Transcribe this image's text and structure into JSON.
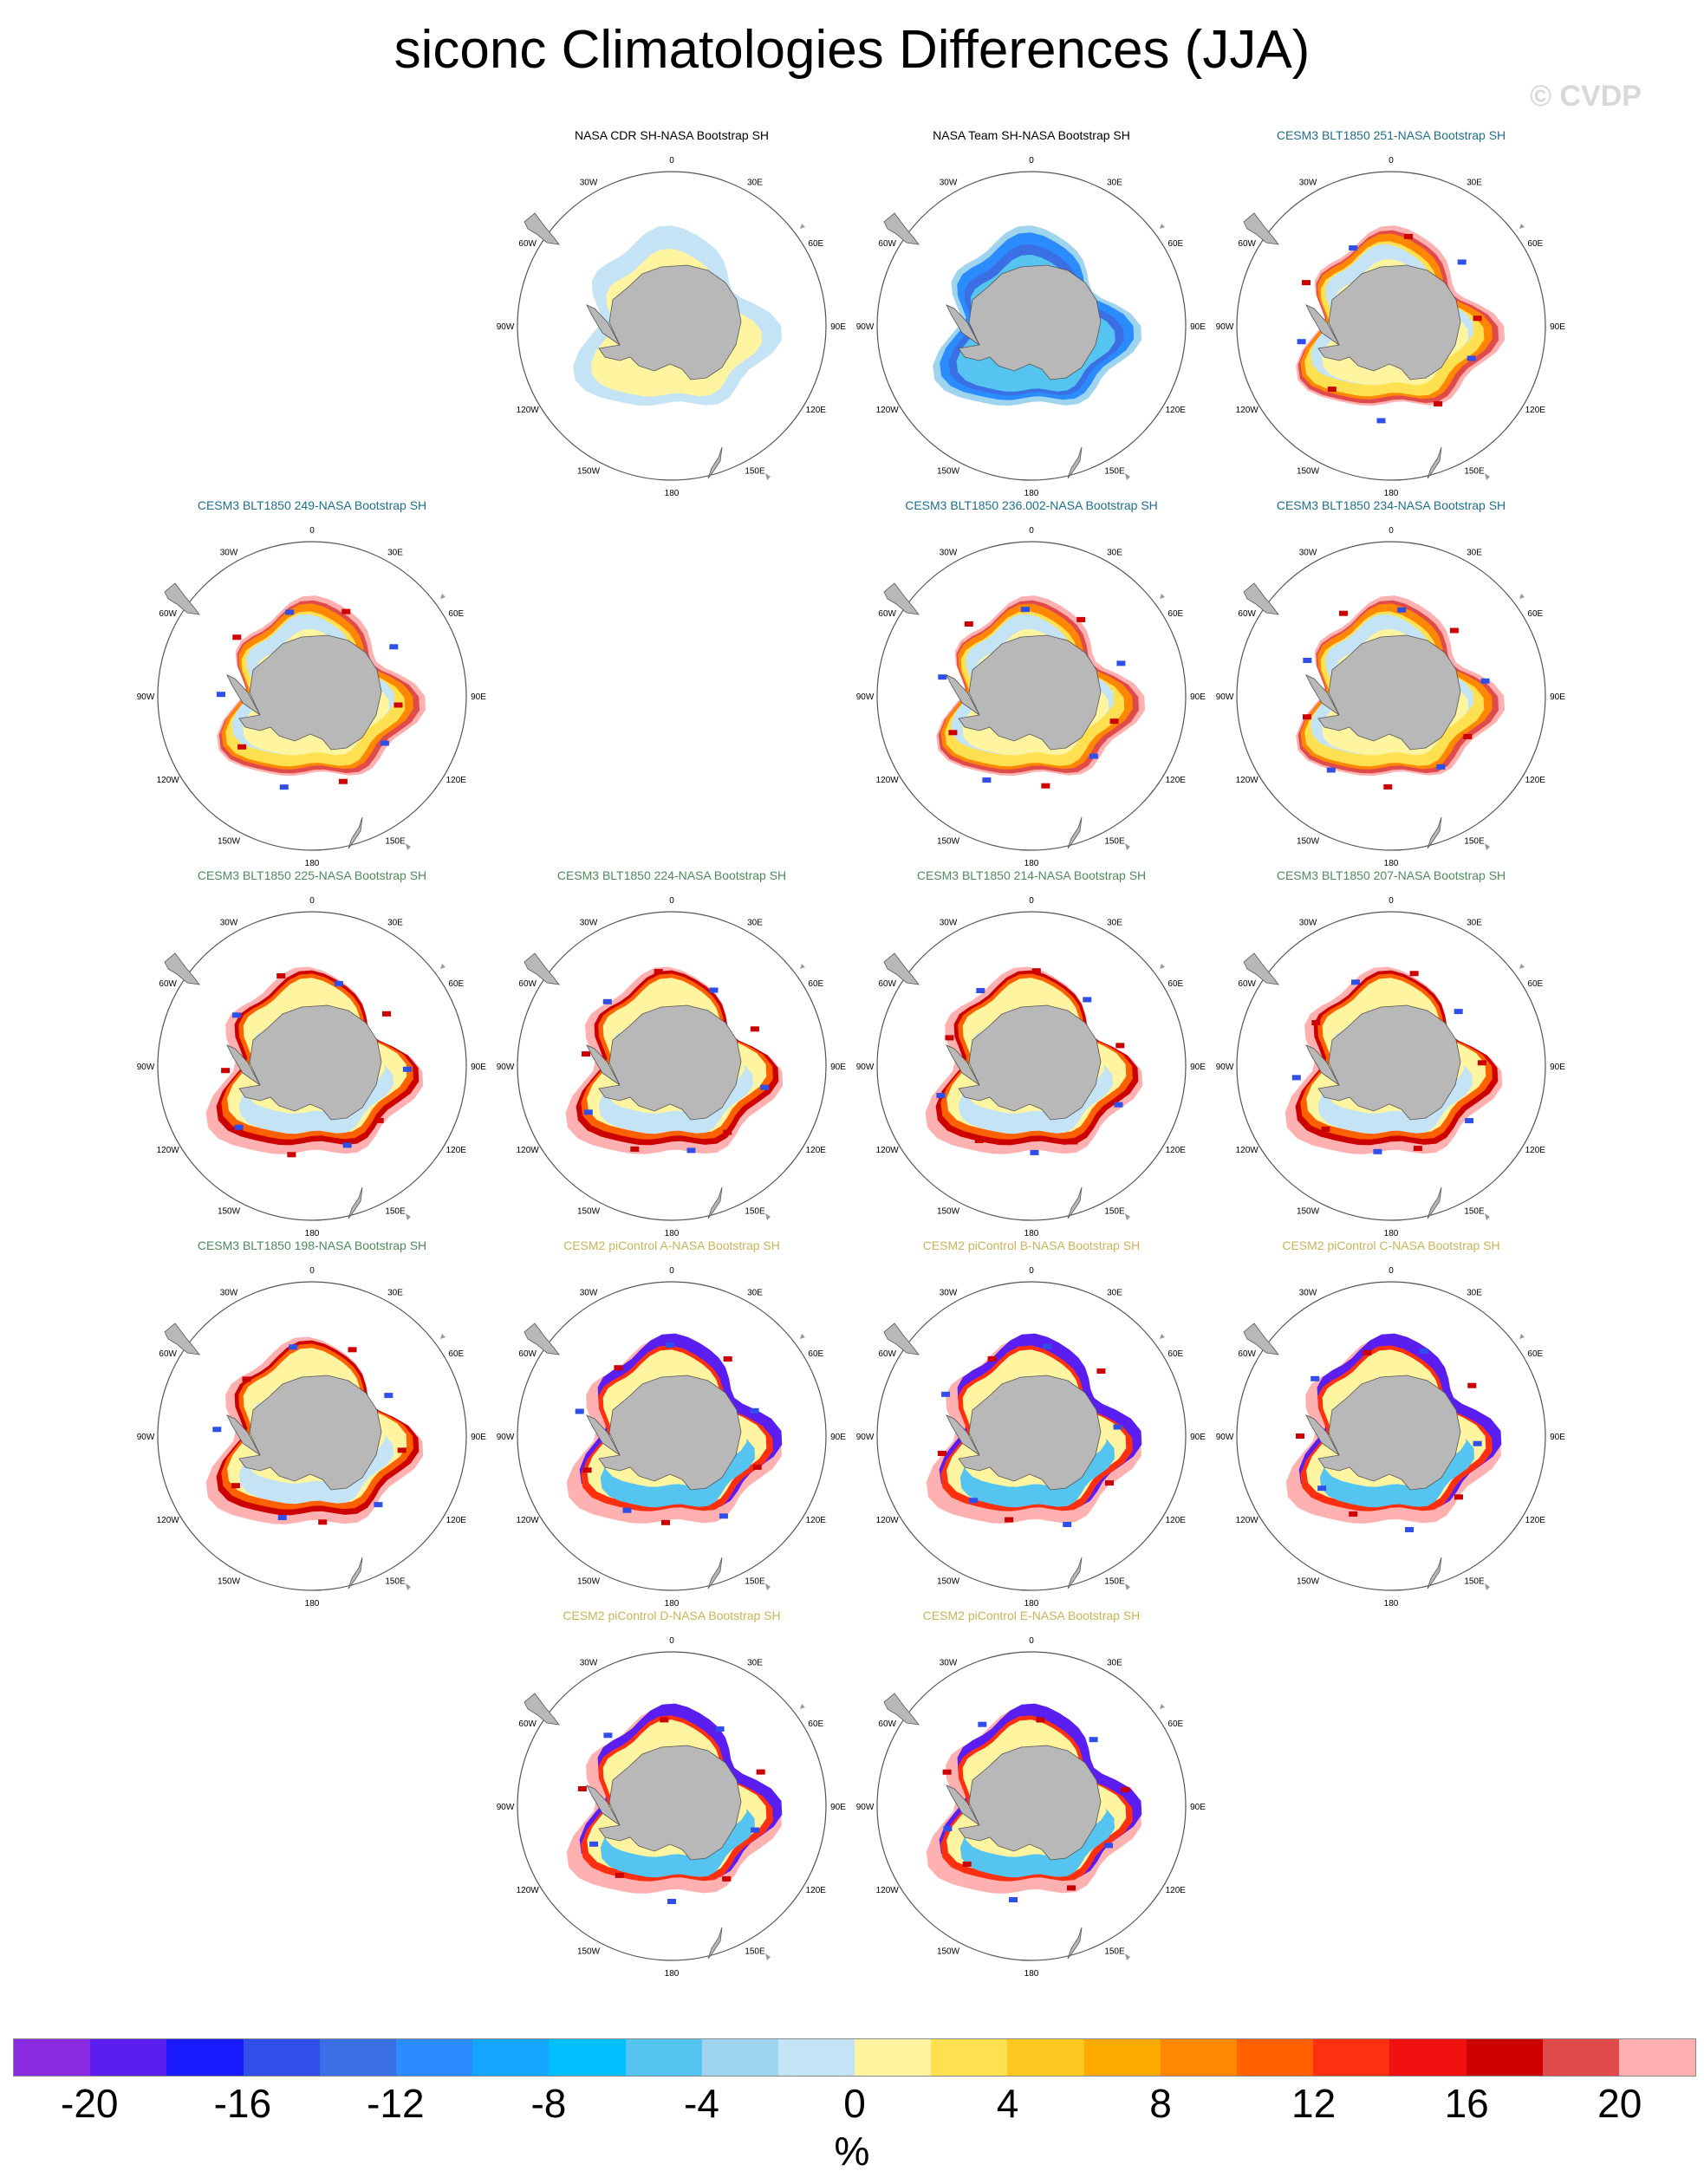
{
  "title": "siconc Climatologies Differences (JJA)",
  "watermark": "© CVDP",
  "map_labels": {
    "top": "0",
    "bottom": "180",
    "lon": [
      "30W",
      "30E",
      "60W",
      "60E",
      "90W",
      "90E",
      "120W",
      "120E",
      "150W",
      "150E"
    ]
  },
  "panels": [
    {
      "title": "NASA CDR SH-NASA Bootstrap SH",
      "title_color": "#000000",
      "pattern": "cdr"
    },
    {
      "title": "NASA Team SH-NASA Bootstrap SH",
      "title_color": "#000000",
      "pattern": "team"
    },
    {
      "title": "CESM3 BLT1850 251-NASA Bootstrap SH",
      "title_color": "#1f6e8c",
      "pattern": "blt_a"
    },
    {
      "title": "CESM3 BLT1850 249-NASA Bootstrap SH",
      "title_color": "#1f6e8c",
      "pattern": "blt_a"
    },
    {
      "title": "CESM3 BLT1850 236.002-NASA Bootstrap SH",
      "title_color": "#1f6e8c",
      "pattern": "blt_a"
    },
    {
      "title": "CESM3 BLT1850 234-NASA Bootstrap SH",
      "title_color": "#1f6e8c",
      "pattern": "blt_a"
    },
    {
      "title": "CESM3 BLT1850 225-NASA Bootstrap SH",
      "title_color": "#4f8a5b",
      "pattern": "blt_b"
    },
    {
      "title": "CESM3 BLT1850 224-NASA Bootstrap SH",
      "title_color": "#4f8a5b",
      "pattern": "blt_b"
    },
    {
      "title": "CESM3 BLT1850 214-NASA Bootstrap SH",
      "title_color": "#4f8a5b",
      "pattern": "blt_b"
    },
    {
      "title": "CESM3 BLT1850 207-NASA Bootstrap SH",
      "title_color": "#4f8a5b",
      "pattern": "blt_b"
    },
    {
      "title": "CESM3 BLT1850 198-NASA Bootstrap SH",
      "title_color": "#4f8a5b",
      "pattern": "blt_b"
    },
    {
      "title": "CESM2 piControl A-NASA Bootstrap SH",
      "title_color": "#c9b458",
      "pattern": "cesm2"
    },
    {
      "title": "CESM2 piControl B-NASA Bootstrap SH",
      "title_color": "#c9b458",
      "pattern": "cesm2"
    },
    {
      "title": "CESM2 piControl C-NASA Bootstrap SH",
      "title_color": "#c9b458",
      "pattern": "cesm2"
    },
    {
      "title": "CESM2 piControl D-NASA Bootstrap SH",
      "title_color": "#c9b458",
      "pattern": "cesm2"
    },
    {
      "title": "CESM2 piControl E-NASA Bootstrap SH",
      "title_color": "#c9b458",
      "pattern": "cesm2"
    }
  ],
  "colorbar": {
    "colors": [
      "#8a2be2",
      "#5a1ef0",
      "#1a1aff",
      "#2f4fe8",
      "#3b6fe4",
      "#2a8cff",
      "#14a6ff",
      "#00c0ff",
      "#55c4f0",
      "#9fd4ef",
      "#c4e4f6",
      "#fff5a0",
      "#ffe050",
      "#ffc820",
      "#ffaa00",
      "#ff8800",
      "#ff6000",
      "#ff3010",
      "#f01010",
      "#cc0000",
      "#e04a4a",
      "#ffb0b0"
    ],
    "labels": [
      "-20",
      "-16",
      "-12",
      "-8",
      "-4",
      "0",
      "4",
      "8",
      "12",
      "16",
      "20"
    ],
    "unit": "%"
  }
}
